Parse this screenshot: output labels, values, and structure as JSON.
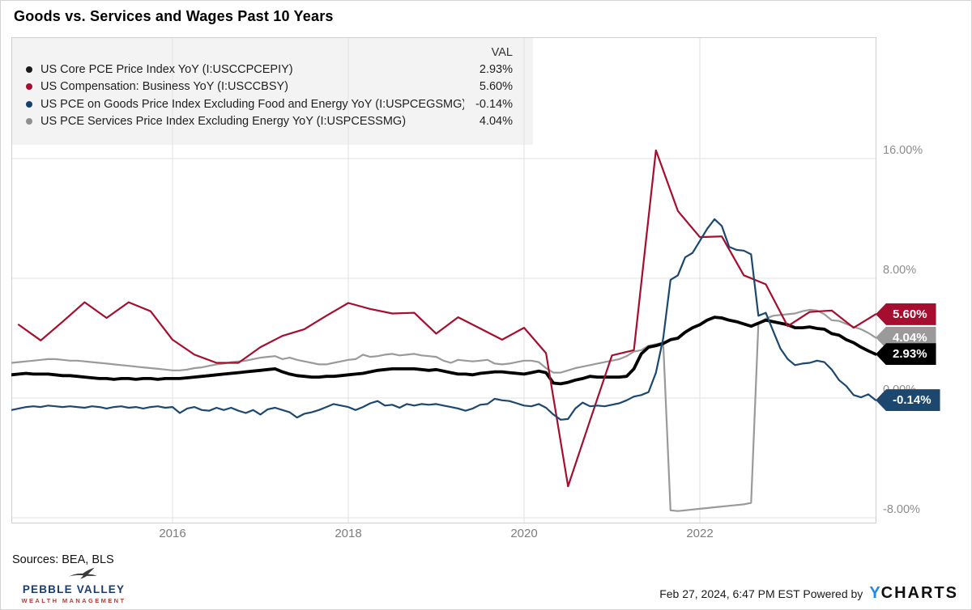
{
  "title": "Goods vs. Services and Wages Past 10 Years",
  "legend": {
    "val_header": "VAL",
    "rows": [
      {
        "label": "US Core PCE Price Index YoY (I:USCCPCEPIY)",
        "value": "2.93%",
        "color": "#1a1a1a"
      },
      {
        "label": "US Compensation: Business YoY (I:USCCBSY)",
        "value": "5.60%",
        "color": "#a50e2e"
      },
      {
        "label": "US PCE on Goods Price Index Excluding Food and Energy YoY (I:USPCEGSMG)",
        "value": "-0.14%",
        "color": "#17406b"
      },
      {
        "label": "US PCE Services Price Index Excluding Energy YoY (I:USPCESSMG)",
        "value": "4.04%",
        "color": "#8f8f8f"
      }
    ]
  },
  "chart_data": {
    "type": "line",
    "title": "Goods vs. Services and Wages Past 10 Years",
    "x_range_years": [
      2014.17,
      2024.0
    ],
    "ylim": [
      -8.3,
      24.1
    ],
    "grid": true,
    "colors": {
      "grid": "#e2e2e2",
      "border": "#cfcfcf",
      "legend_bg": "#f3f3f3"
    },
    "x_axis": {
      "ticks": [
        {
          "label": "2016",
          "year": 2016
        },
        {
          "label": "2018",
          "year": 2018
        },
        {
          "label": "2020",
          "year": 2020
        },
        {
          "label": "2022",
          "year": 2022
        }
      ]
    },
    "y_axis": {
      "ticks": [
        {
          "label": "16.00%",
          "value": 16
        },
        {
          "label": "8.00%",
          "value": 8
        },
        {
          "label": "0.00%",
          "value": 0
        },
        {
          "label": "-8.00%",
          "value": -8
        }
      ]
    },
    "series": [
      {
        "name": "US PCE Services Price Index Excluding Energy YoY (I:USPCESSMG)",
        "color": "#9a9a9a",
        "stroke_width": 2.2,
        "badge": "4.04%",
        "frequency": "monthly",
        "start": 2014.1667,
        "step": 0.0833333,
        "values": [
          2.35,
          2.4,
          2.45,
          2.5,
          2.55,
          2.6,
          2.6,
          2.55,
          2.5,
          2.5,
          2.45,
          2.4,
          2.35,
          2.3,
          2.25,
          2.2,
          2.15,
          2.1,
          2.05,
          2.0,
          1.95,
          1.9,
          1.85,
          1.85,
          1.9,
          2.0,
          2.05,
          2.15,
          2.25,
          2.3,
          2.4,
          2.45,
          2.5,
          2.6,
          2.7,
          2.75,
          2.8,
          2.6,
          2.7,
          2.55,
          2.45,
          2.35,
          2.25,
          2.25,
          2.35,
          2.45,
          2.55,
          2.6,
          2.9,
          2.75,
          2.8,
          2.9,
          2.95,
          2.85,
          2.9,
          2.95,
          2.85,
          2.8,
          2.75,
          2.5,
          2.35,
          2.55,
          2.5,
          2.45,
          2.5,
          2.55,
          2.3,
          2.25,
          2.3,
          2.4,
          2.5,
          2.5,
          2.4,
          2.0,
          1.7,
          1.7,
          1.85,
          2.0,
          2.1,
          2.2,
          2.3,
          2.4,
          2.5,
          2.6,
          2.8,
          3.1,
          3.2,
          3.5,
          3.6,
          3.7,
          -7.5,
          -7.55,
          -7.5,
          -7.45,
          -7.4,
          -7.35,
          -7.3,
          -7.25,
          -7.2,
          -7.15,
          -7.1,
          -7.0,
          5.0,
          5.3,
          5.5,
          5.55,
          5.6,
          5.65,
          5.8,
          5.9,
          5.85,
          5.6,
          5.2,
          5.15,
          4.95,
          4.75,
          4.6,
          4.35,
          4.04
        ]
      },
      {
        "name": "US Core PCE Price Index YoY (I:USCCPCEPIY)",
        "color": "#000000",
        "stroke_width": 3.8,
        "badge": "2.93%",
        "frequency": "monthly",
        "start": 2014.1667,
        "step": 0.0833333,
        "values": [
          1.55,
          1.6,
          1.65,
          1.6,
          1.6,
          1.6,
          1.55,
          1.5,
          1.5,
          1.45,
          1.4,
          1.35,
          1.3,
          1.3,
          1.25,
          1.3,
          1.3,
          1.25,
          1.3,
          1.3,
          1.25,
          1.3,
          1.3,
          1.3,
          1.35,
          1.4,
          1.45,
          1.5,
          1.55,
          1.6,
          1.65,
          1.7,
          1.75,
          1.8,
          1.85,
          1.9,
          1.95,
          1.75,
          1.6,
          1.5,
          1.45,
          1.4,
          1.4,
          1.45,
          1.45,
          1.5,
          1.55,
          1.6,
          1.65,
          1.75,
          1.85,
          1.9,
          1.95,
          1.95,
          1.95,
          1.95,
          1.9,
          1.85,
          1.9,
          1.8,
          1.7,
          1.6,
          1.6,
          1.55,
          1.65,
          1.7,
          1.75,
          1.75,
          1.7,
          1.65,
          1.6,
          1.7,
          1.8,
          1.7,
          1.0,
          0.95,
          1.05,
          1.2,
          1.3,
          1.45,
          1.4,
          1.4,
          1.4,
          1.4,
          1.45,
          1.95,
          2.95,
          3.4,
          3.5,
          3.65,
          3.9,
          4.0,
          4.4,
          4.7,
          4.9,
          5.2,
          5.4,
          5.35,
          5.2,
          5.1,
          4.95,
          4.8,
          5.0,
          5.2,
          5.1,
          5.0,
          4.9,
          4.7,
          4.7,
          4.75,
          4.65,
          4.6,
          4.3,
          4.2,
          3.9,
          3.7,
          3.4,
          3.15,
          2.93
        ]
      },
      {
        "name": "US Compensation: Business YoY (I:USCCBSY)",
        "color": "#a50e2e",
        "stroke_width": 2.2,
        "badge": "5.60%",
        "frequency": "quarterly",
        "start": 2014.25,
        "step": 0.25,
        "values": [
          4.9,
          3.85,
          5.1,
          6.4,
          5.35,
          6.4,
          5.8,
          3.9,
          2.9,
          2.35,
          2.35,
          3.4,
          4.15,
          4.6,
          5.5,
          6.35,
          5.95,
          5.65,
          5.7,
          4.3,
          5.4,
          4.65,
          3.9,
          4.7,
          3.0,
          -5.9,
          -1.5,
          2.85,
          3.2,
          16.55,
          12.5,
          10.75,
          10.8,
          8.2,
          7.6,
          4.8,
          5.75,
          5.85,
          4.7,
          5.6
        ]
      },
      {
        "name": "US PCE on Goods Price Index Excluding Food and Energy YoY (I:USPCEGSMG)",
        "color": "#1c476f",
        "stroke_width": 2.2,
        "badge": "-0.14%",
        "frequency": "monthly",
        "start": 2014.1667,
        "step": 0.0833333,
        "values": [
          -0.8,
          -0.7,
          -0.6,
          -0.55,
          -0.6,
          -0.5,
          -0.55,
          -0.6,
          -0.55,
          -0.6,
          -0.65,
          -0.55,
          -0.6,
          -0.7,
          -0.6,
          -0.55,
          -0.65,
          -0.6,
          -0.7,
          -0.6,
          -0.55,
          -0.65,
          -0.6,
          -1.0,
          -0.7,
          -0.6,
          -0.8,
          -0.85,
          -0.65,
          -0.8,
          -0.65,
          -0.85,
          -1.0,
          -0.8,
          -1.1,
          -0.75,
          -0.65,
          -0.8,
          -0.95,
          -1.3,
          -1.05,
          -0.95,
          -0.8,
          -0.6,
          -0.4,
          -0.5,
          -0.6,
          -0.8,
          -0.6,
          -0.35,
          -0.2,
          -0.5,
          -0.45,
          -0.65,
          -0.4,
          -0.5,
          -0.4,
          -0.45,
          -0.4,
          -0.5,
          -0.6,
          -0.7,
          -0.85,
          -0.7,
          -0.45,
          -0.4,
          -0.05,
          -0.15,
          -0.2,
          -0.35,
          -0.5,
          -0.55,
          -0.4,
          -0.65,
          -1.1,
          -1.45,
          -1.4,
          -0.7,
          -0.3,
          -0.55,
          -0.5,
          -0.55,
          -0.45,
          -0.35,
          -0.15,
          0.1,
          0.2,
          0.4,
          1.7,
          4.0,
          7.9,
          8.2,
          9.4,
          9.7,
          10.5,
          11.3,
          11.95,
          11.5,
          10.1,
          9.9,
          9.85,
          9.6,
          5.5,
          5.7,
          4.5,
          3.3,
          2.6,
          2.2,
          2.3,
          2.35,
          2.5,
          2.4,
          1.9,
          1.2,
          0.8,
          0.2,
          0.05,
          0.25,
          -0.14
        ]
      }
    ]
  },
  "footer": {
    "sources": "Sources: BEA, BLS",
    "brand": {
      "name": "PEBBLE VALLEY",
      "subtitle": "WEALTH MANAGEMENT"
    },
    "timestamp": "Feb 27, 2024, 6:47 PM EST Powered by",
    "ycharts": {
      "y": "Y",
      "charts": "CHARTS"
    }
  }
}
